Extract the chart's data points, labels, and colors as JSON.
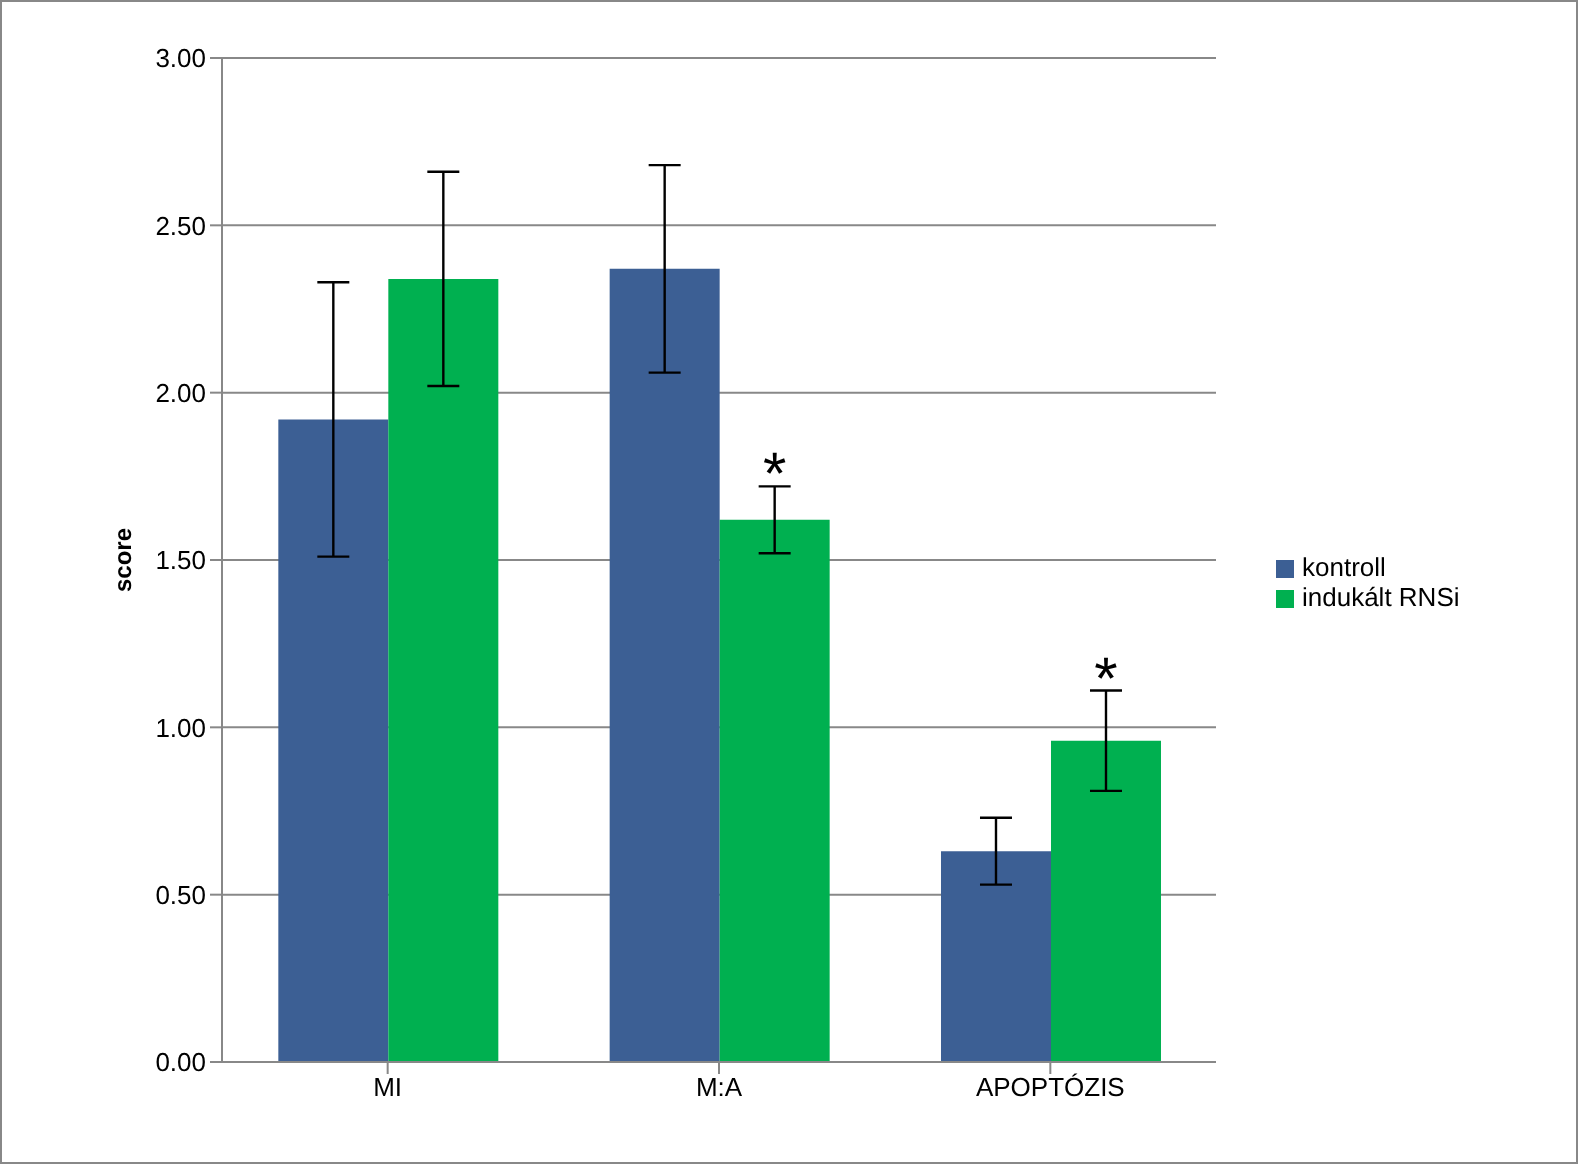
{
  "chart_data": {
    "type": "bar",
    "ylabel": "score",
    "categories": [
      "MI",
      "M:A",
      "APOPTÓZIS"
    ],
    "series": [
      {
        "name": "kontroll",
        "color": "#3c5f94",
        "values": [
          1.92,
          2.37,
          0.63
        ],
        "errors": [
          0.41,
          0.31,
          0.1
        ]
      },
      {
        "name": "indukált RNSi",
        "color": "#00b050",
        "values": [
          2.34,
          1.62,
          0.96
        ],
        "errors": [
          0.32,
          0.1,
          0.15
        ]
      }
    ],
    "ylim": [
      0,
      3
    ],
    "yticks": [
      {
        "value": 0,
        "label": "0.00"
      },
      {
        "value": 0.5,
        "label": "0.50"
      },
      {
        "value": 1,
        "label": "1.00"
      },
      {
        "value": 1.5,
        "label": "1.50"
      },
      {
        "value": 2,
        "label": "2.00"
      },
      {
        "value": 2.5,
        "label": "2.50"
      },
      {
        "value": 3,
        "label": "3.00"
      }
    ],
    "grid": "y",
    "legend": "right",
    "annotations": [
      {
        "text": "*",
        "x": "M:A",
        "y": 1.62
      },
      {
        "text": "*",
        "x": "APOPTÓZIS",
        "y": 0.96
      }
    ]
  }
}
